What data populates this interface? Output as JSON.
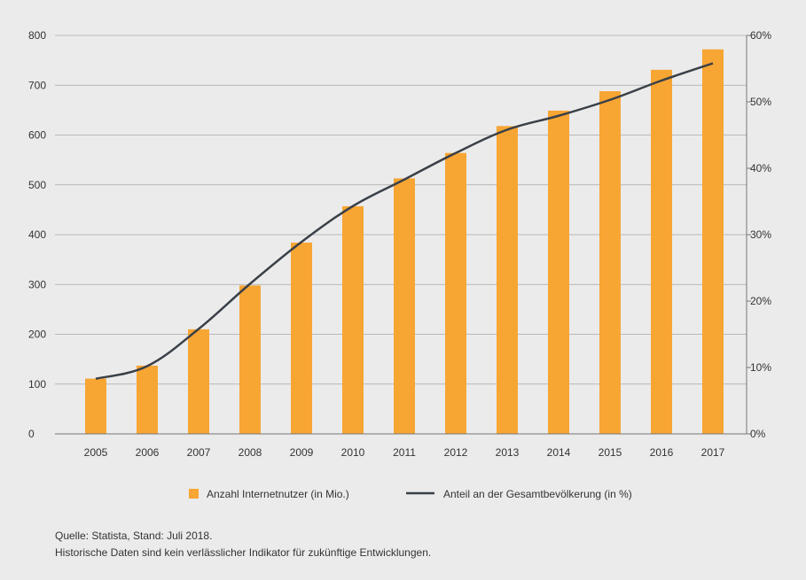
{
  "chart_data": {
    "type": "bar",
    "categories": [
      "2005",
      "2006",
      "2007",
      "2008",
      "2009",
      "2010",
      "2011",
      "2012",
      "2013",
      "2014",
      "2015",
      "2016",
      "2017"
    ],
    "series": [
      {
        "name": "Anzahl Internetnutzer (in Mio.)",
        "type": "bar",
        "axis": "left",
        "values": [
          111,
          137,
          210,
          298,
          384,
          457,
          513,
          564,
          618,
          649,
          688,
          731,
          772
        ]
      },
      {
        "name": "Anteil an der Gesamtbevölkerung (in %)",
        "type": "line",
        "axis": "right",
        "values": [
          8.3,
          10.2,
          15.8,
          22.6,
          28.9,
          34.3,
          38.3,
          42.3,
          45.8,
          47.9,
          50.3,
          53.2,
          55.8
        ]
      }
    ],
    "y_left": {
      "min": 0,
      "max": 800,
      "ticks": [
        0,
        100,
        200,
        300,
        400,
        500,
        600,
        700,
        800
      ],
      "tick_labels": [
        "0",
        "100",
        "200",
        "300",
        "400",
        "500",
        "600",
        "700",
        "800"
      ]
    },
    "y_right": {
      "min": 0,
      "max": 60,
      "ticks": [
        0,
        10,
        20,
        30,
        40,
        50,
        60
      ],
      "tick_labels": [
        "0%",
        "10%",
        "20%",
        "30%",
        "40%",
        "50%",
        "60%"
      ]
    },
    "grid": true,
    "legend_position": "bottom-center",
    "colors": {
      "bar": "#f7a533",
      "line": "#3a4048",
      "grid": "#a8a8a8",
      "axis": "#777777",
      "background": "#ebebeb"
    }
  },
  "footnotes": {
    "source": "Quelle: Statista, Stand: Juli 2018.",
    "disclaimer": "Historische Daten sind kein verlässlicher Indikator für zukünftige Entwicklungen."
  }
}
